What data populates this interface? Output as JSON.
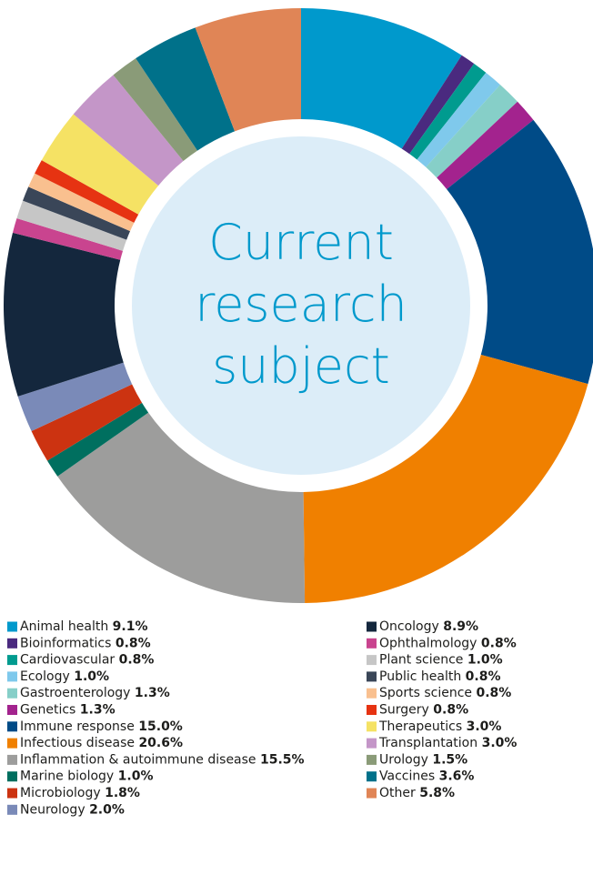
{
  "chart_data": {
    "type": "donut",
    "title_lines": [
      "Current",
      "research",
      "subject"
    ],
    "categories": [
      "Animal health",
      "Bioinformatics",
      "Cardiovascular",
      "Ecology",
      "Gastroenterology",
      "Genetics",
      "Immune response",
      "Infectious disease",
      "Inflammation & autoimmune disease",
      "Marine biology",
      "Microbiology",
      "Neurology",
      "Oncology",
      "Ophthalmology",
      "Plant science",
      "Public health",
      "Sports science",
      "Surgery",
      "Therapeutics",
      "Transplantation",
      "Urology",
      "Vaccines",
      "Other"
    ],
    "values": [
      9.1,
      0.8,
      0.8,
      1.0,
      1.3,
      1.3,
      15.0,
      20.6,
      15.5,
      1.0,
      1.8,
      2.0,
      8.9,
      0.8,
      1.0,
      0.8,
      0.8,
      0.8,
      3.0,
      3.0,
      1.5,
      3.6,
      5.8
    ],
    "value_labels": [
      "9.1%",
      "0.8%",
      "0.8%",
      "1.0%",
      "1.3%",
      "1.3%",
      "15.0%",
      "20.6%",
      "15.5%",
      "1.0%",
      "1.8%",
      "2.0%",
      "8.9%",
      "0.8%",
      "1.0%",
      "0.8%",
      "0.8%",
      "0.8%",
      "3.0%",
      "3.0%",
      "1.5%",
      "3.6%",
      "5.8%"
    ],
    "colors": [
      "#0099cc",
      "#4a2a7f",
      "#009b8f",
      "#7fc9ec",
      "#86cfc8",
      "#a3238e",
      "#004b87",
      "#f08000",
      "#9d9d9c",
      "#006f5f",
      "#cc3311",
      "#7a8ab8",
      "#14273d",
      "#c9448f",
      "#c6c6c6",
      "#3a4658",
      "#f9c08f",
      "#e63312",
      "#f5e264",
      "#c496c8",
      "#8a9b78",
      "#00718a",
      "#e08556"
    ]
  }
}
